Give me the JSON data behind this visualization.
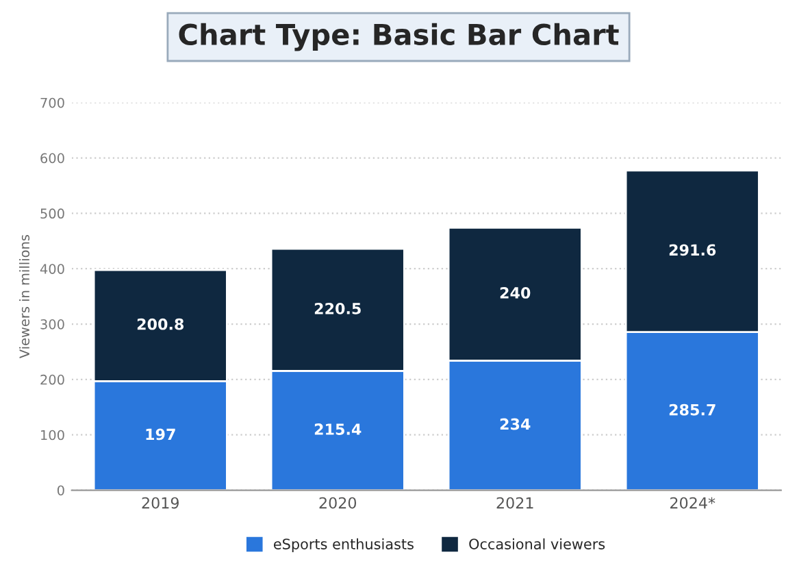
{
  "chart_data": {
    "type": "bar",
    "title": "Chart Type: Basic Bar Chart",
    "ylabel": "Viewers in millions",
    "categories": [
      "2019",
      "2020",
      "2021",
      "2024*"
    ],
    "series": [
      {
        "name": "eSports enthusiasts",
        "color": "#2a77dc",
        "values": [
          197,
          215.4,
          234,
          285.7
        ]
      },
      {
        "name": "Occasional viewers",
        "color": "#0f2840",
        "values": [
          200.8,
          220.5,
          240,
          291.6
        ]
      }
    ],
    "stacked": true,
    "data_labels": true,
    "ylim": [
      0,
      700
    ],
    "yticks": [
      0,
      100,
      200,
      300,
      400,
      500,
      600,
      700
    ],
    "grid": "y",
    "legend": "bottom"
  }
}
